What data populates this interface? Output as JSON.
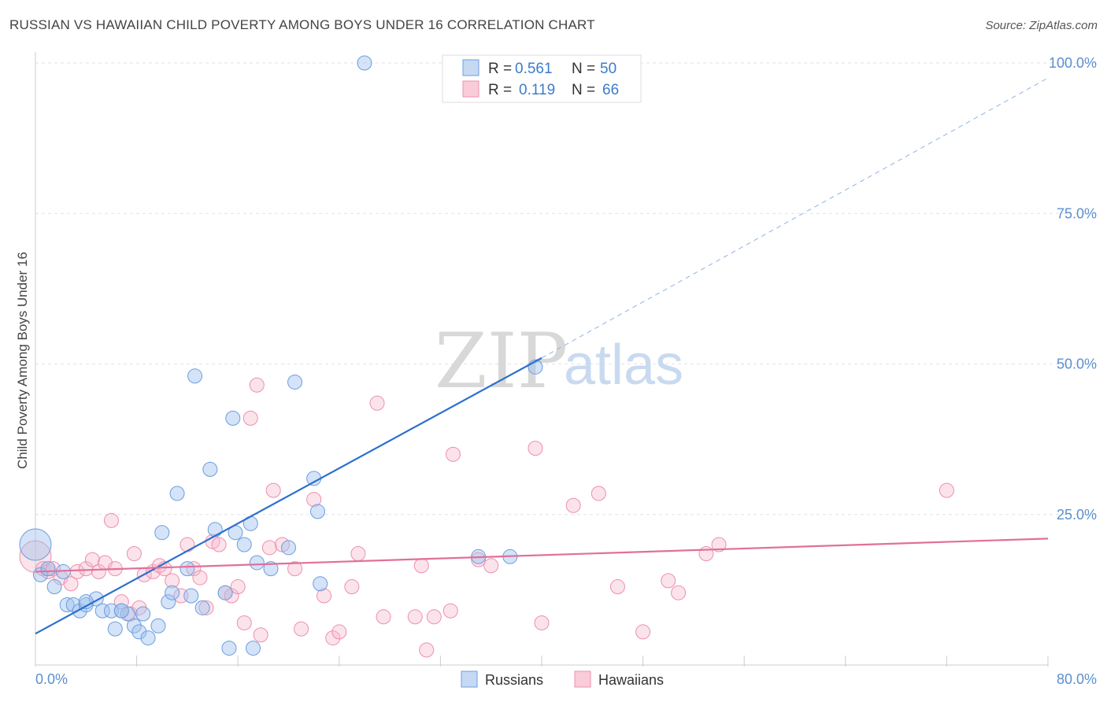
{
  "header": {
    "title": "RUSSIAN VS HAWAIIAN CHILD POVERTY AMONG BOYS UNDER 16 CORRELATION CHART",
    "source": "Source: ZipAtlas.com"
  },
  "watermark": {
    "zip": "ZIP",
    "atlas": "atlas"
  },
  "legend": {
    "rows": [
      {
        "r_label": "R = ",
        "r_value": "0.561",
        "n_label": "N = ",
        "n_value": "50"
      },
      {
        "r_label": "R = ",
        "r_value": "0.119",
        "n_label": "N = ",
        "n_value": "66"
      }
    ]
  },
  "bottom_legend": {
    "russians": "Russians",
    "hawaiians": "Hawaiians"
  },
  "chart_data": {
    "type": "scatter",
    "title": "RUSSIAN VS HAWAIIAN CHILD POVERTY AMONG BOYS UNDER 16 CORRELATION CHART",
    "xlabel": "",
    "ylabel": "Child Poverty Among Boys Under 16",
    "xlim": [
      0,
      80
    ],
    "ylim": [
      0,
      100
    ],
    "x_tick_labels": {
      "left": "0.0%",
      "right": "80.0%"
    },
    "y_ticks": [
      {
        "value": 25,
        "label": "25.0%"
      },
      {
        "value": 50,
        "label": "50.0%"
      },
      {
        "value": 75,
        "label": "75.0%"
      },
      {
        "value": 100,
        "label": "100.0%"
      }
    ],
    "grid": true,
    "colors": {
      "russians": "#6a9ee0",
      "hawaiians": "#ee8fab",
      "russians_line": "#2d6fcf",
      "hawaiians_line": "#e0709a"
    },
    "series": [
      {
        "name": "Russians",
        "r": 0.561,
        "n": 50,
        "trend": {
          "x0": 0,
          "y0": 5.2,
          "x1": 40,
          "y1": 51,
          "extend_to_x": 80,
          "extend_to_y": 97.5
        },
        "points": [
          [
            0.0,
            20.0,
            2
          ],
          [
            0.4,
            15.0,
            1
          ],
          [
            1.0,
            16.0,
            1
          ],
          [
            1.5,
            13.0,
            1
          ],
          [
            2.2,
            15.5,
            1
          ],
          [
            2.5,
            10.0,
            1
          ],
          [
            3.0,
            10.0,
            1
          ],
          [
            3.5,
            9.0,
            1
          ],
          [
            4.0,
            10.0,
            1
          ],
          [
            4.8,
            11.0,
            1
          ],
          [
            5.3,
            9.0,
            1
          ],
          [
            6.0,
            9.0,
            1
          ],
          [
            6.3,
            6.0,
            1
          ],
          [
            6.8,
            9.0,
            1
          ],
          [
            7.3,
            8.5,
            1
          ],
          [
            7.8,
            6.5,
            1
          ],
          [
            8.2,
            5.5,
            1
          ],
          [
            8.5,
            8.5,
            1
          ],
          [
            8.9,
            4.5,
            1
          ],
          [
            9.7,
            6.5,
            1
          ],
          [
            10.0,
            22.0,
            1
          ],
          [
            10.5,
            10.5,
            1
          ],
          [
            10.8,
            12.0,
            1
          ],
          [
            11.2,
            28.5,
            1
          ],
          [
            12.0,
            16.0,
            1
          ],
          [
            12.3,
            11.5,
            1
          ],
          [
            12.6,
            48.0,
            1
          ],
          [
            13.2,
            9.5,
            1
          ],
          [
            13.8,
            32.5,
            1
          ],
          [
            14.2,
            22.5,
            1
          ],
          [
            15.0,
            12.0,
            1
          ],
          [
            15.3,
            2.8,
            1
          ],
          [
            15.6,
            41.0,
            1
          ],
          [
            15.8,
            22.0,
            1
          ],
          [
            16.5,
            20.0,
            1
          ],
          [
            17.0,
            23.5,
            1
          ],
          [
            17.2,
            2.8,
            1
          ],
          [
            17.5,
            17.0,
            1
          ],
          [
            18.6,
            16.0,
            1
          ],
          [
            20.0,
            19.5,
            1
          ],
          [
            20.5,
            47.0,
            1
          ],
          [
            22.0,
            31.0,
            1
          ],
          [
            22.3,
            25.5,
            1
          ],
          [
            22.5,
            13.5,
            1
          ],
          [
            26.0,
            100.0,
            1
          ],
          [
            35.0,
            18.0,
            1
          ],
          [
            37.5,
            18.0,
            1
          ],
          [
            39.5,
            49.5,
            1
          ],
          [
            6.8,
            9.0,
            1
          ],
          [
            4.0,
            10.5,
            1
          ]
        ]
      },
      {
        "name": "Hawaiians",
        "r": 0.119,
        "n": 66,
        "trend": {
          "x0": 0,
          "y0": 15.5,
          "x1": 80,
          "y1": 21
        },
        "points": [
          [
            0.0,
            18.0,
            2
          ],
          [
            0.6,
            16.0,
            1
          ],
          [
            1.0,
            15.5,
            1
          ],
          [
            1.4,
            16.0,
            1
          ],
          [
            2.0,
            14.5,
            1
          ],
          [
            2.8,
            13.5,
            1
          ],
          [
            3.3,
            15.5,
            1
          ],
          [
            4.0,
            16.0,
            1
          ],
          [
            4.5,
            17.5,
            1
          ],
          [
            5.0,
            15.5,
            1
          ],
          [
            5.5,
            17.0,
            1
          ],
          [
            6.0,
            24.0,
            1
          ],
          [
            6.3,
            16.0,
            1
          ],
          [
            6.8,
            10.5,
            1
          ],
          [
            7.5,
            8.5,
            1
          ],
          [
            7.8,
            18.5,
            1
          ],
          [
            8.2,
            9.5,
            1
          ],
          [
            8.6,
            15.0,
            1
          ],
          [
            9.3,
            15.5,
            1
          ],
          [
            9.8,
            16.5,
            1
          ],
          [
            10.2,
            16.0,
            1
          ],
          [
            10.8,
            14.0,
            1
          ],
          [
            11.5,
            11.5,
            1
          ],
          [
            12.0,
            20.0,
            1
          ],
          [
            12.5,
            16.0,
            1
          ],
          [
            13.0,
            14.5,
            1
          ],
          [
            13.5,
            9.5,
            1
          ],
          [
            14.0,
            20.5,
            1
          ],
          [
            14.5,
            20.0,
            1
          ],
          [
            15.0,
            12.0,
            1
          ],
          [
            15.5,
            11.5,
            1
          ],
          [
            16.0,
            13.0,
            1
          ],
          [
            16.5,
            7.0,
            1
          ],
          [
            17.0,
            41.0,
            1
          ],
          [
            17.5,
            46.5,
            1
          ],
          [
            17.8,
            5.0,
            1
          ],
          [
            18.8,
            29.0,
            1
          ],
          [
            18.5,
            19.5,
            1
          ],
          [
            19.5,
            20.0,
            1
          ],
          [
            20.5,
            16.0,
            1
          ],
          [
            21.0,
            6.0,
            1
          ],
          [
            22.0,
            27.5,
            1
          ],
          [
            22.8,
            11.5,
            1
          ],
          [
            23.5,
            4.5,
            1
          ],
          [
            24.0,
            5.5,
            1
          ],
          [
            25.0,
            13.0,
            1
          ],
          [
            25.5,
            18.5,
            1
          ],
          [
            27.0,
            43.5,
            1
          ],
          [
            27.5,
            8.0,
            1
          ],
          [
            30.0,
            8.0,
            1
          ],
          [
            30.5,
            16.5,
            1
          ],
          [
            30.9,
            2.5,
            1
          ],
          [
            31.5,
            8.0,
            1
          ],
          [
            32.8,
            9.0,
            1
          ],
          [
            33.0,
            35.0,
            1
          ],
          [
            35.0,
            17.5,
            1
          ],
          [
            36.0,
            16.5,
            1
          ],
          [
            39.5,
            36.0,
            1
          ],
          [
            40.0,
            7.0,
            1
          ],
          [
            42.5,
            26.5,
            1
          ],
          [
            44.5,
            28.5,
            1
          ],
          [
            46.0,
            13.0,
            1
          ],
          [
            48.0,
            5.5,
            1
          ],
          [
            50.0,
            14.0,
            1
          ],
          [
            50.8,
            12.0,
            1
          ],
          [
            53.0,
            18.5,
            1
          ],
          [
            54.0,
            20.0,
            1
          ],
          [
            72.0,
            29.0,
            1
          ]
        ]
      }
    ]
  }
}
